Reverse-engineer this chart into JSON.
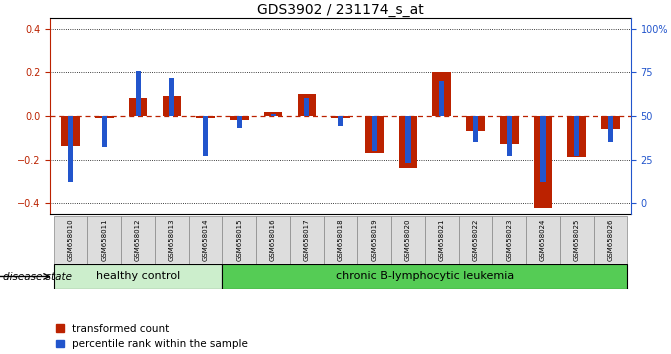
{
  "title": "GDS3902 / 231174_s_at",
  "samples": [
    "GSM658010",
    "GSM658011",
    "GSM658012",
    "GSM658013",
    "GSM658014",
    "GSM658015",
    "GSM658016",
    "GSM658017",
    "GSM658018",
    "GSM658019",
    "GSM658020",
    "GSM658021",
    "GSM658022",
    "GSM658023",
    "GSM658024",
    "GSM658025",
    "GSM658026"
  ],
  "red_values": [
    -0.14,
    -0.01,
    0.08,
    0.09,
    -0.01,
    -0.02,
    0.02,
    0.1,
    -0.01,
    -0.17,
    -0.24,
    0.2,
    -0.07,
    -0.13,
    -0.42,
    -0.19,
    -0.06
  ],
  "blue_percentile": [
    12,
    32,
    76,
    72,
    27,
    43,
    51,
    60,
    44,
    30,
    23,
    70,
    35,
    27,
    12,
    27,
    35
  ],
  "healthy_count": 5,
  "chronic_count": 12,
  "ylim_left": [
    -0.45,
    0.45
  ],
  "yticks_left": [
    -0.4,
    -0.2,
    0.0,
    0.2,
    0.4
  ],
  "yticks_right_pct": [
    0,
    25,
    50,
    75,
    100
  ],
  "red_color": "#bb2200",
  "blue_color": "#2255cc",
  "healthy_bg": "#cceecc",
  "leukemia_bg": "#55cc55",
  "sample_box_bg": "#dddddd",
  "group_label": "disease state",
  "group1_label": "healthy control",
  "group2_label": "chronic B-lymphocytic leukemia",
  "legend_red": "transformed count",
  "legend_blue": "percentile rank within the sample",
  "red_bar_width": 0.55,
  "blue_bar_width": 0.15
}
